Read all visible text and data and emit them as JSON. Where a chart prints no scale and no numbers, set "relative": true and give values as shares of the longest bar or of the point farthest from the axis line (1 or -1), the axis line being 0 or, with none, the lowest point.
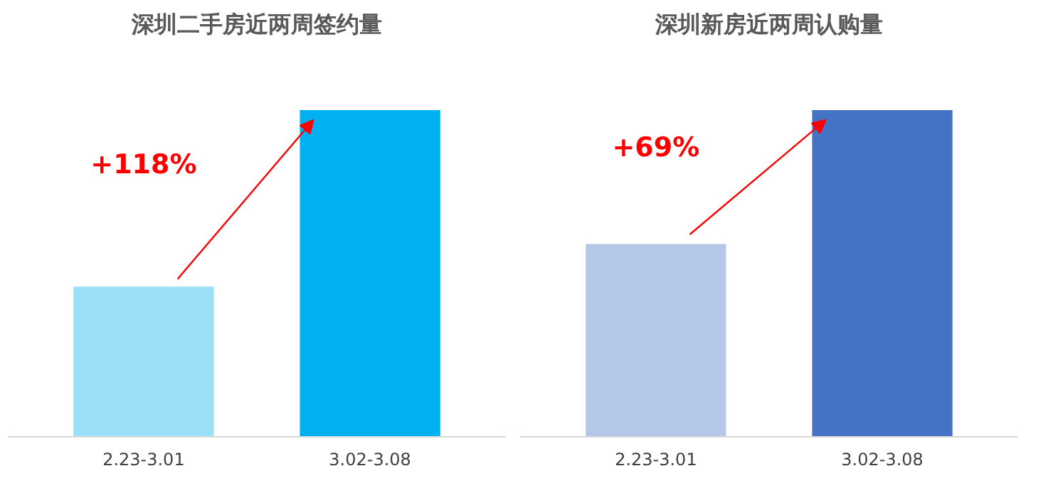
{
  "chart_data": [
    {
      "type": "bar",
      "title": "深圳二手房近两周签约量",
      "relative": true,
      "categories": [
        "2.23-3.01",
        "3.02-3.08"
      ],
      "values": [
        0.46,
        1
      ],
      "colors": [
        "#99e0f8",
        "#00b0f0"
      ],
      "annotations": [
        "+118%"
      ]
    },
    {
      "type": "bar",
      "title": "深圳新房近两周认购量",
      "relative": true,
      "categories": [
        "2.23-3.01",
        "3.02-3.08"
      ],
      "values": [
        0.59,
        1
      ],
      "colors": [
        "#b4c7e7",
        "#4472c4"
      ],
      "annotations": [
        "+69%"
      ]
    }
  ]
}
